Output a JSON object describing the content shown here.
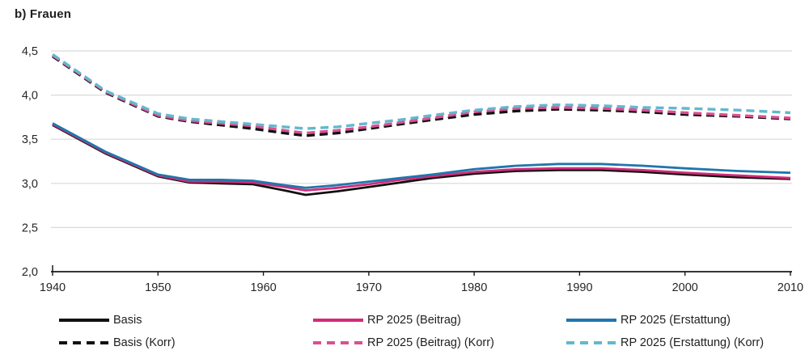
{
  "title": "b) Frauen",
  "colors": {
    "axis": "#1a1a1a",
    "grid": "#d9d9d9",
    "text": "#262626",
    "black": "#111111",
    "pink": "#d42a78",
    "blue": "#1f76ad",
    "pink_light": "#db4f91",
    "cyan": "#62b8cf"
  },
  "chart_data": {
    "type": "line",
    "title": "b) Frauen",
    "xlabel": "",
    "ylabel": "",
    "xlim": [
      1940,
      2010
    ],
    "ylim": [
      2.0,
      4.5
    ],
    "grid": "horizontal-light-gray",
    "legend_position": "bottom",
    "x_ticks": [
      1940,
      1950,
      1960,
      1970,
      1980,
      1990,
      2000,
      2010
    ],
    "y_ticks": [
      2.0,
      2.5,
      3.0,
      3.5,
      4.0,
      4.5
    ],
    "y_tick_labels": [
      "2,0",
      "2,5",
      "3,0",
      "3,5",
      "4,0",
      "4,5"
    ],
    "x": [
      1940,
      1945,
      1950,
      1953,
      1956,
      1959,
      1962,
      1964,
      1967,
      1970,
      1973,
      1976,
      1980,
      1984,
      1988,
      1992,
      1996,
      2000,
      2005,
      2010
    ],
    "series": [
      {
        "name": "Basis",
        "color": "#111111",
        "dash": false,
        "values": [
          3.66,
          3.34,
          3.08,
          3.01,
          3.0,
          2.99,
          2.92,
          2.87,
          2.91,
          2.96,
          3.01,
          3.06,
          3.11,
          3.14,
          3.15,
          3.15,
          3.13,
          3.1,
          3.07,
          3.05
        ]
      },
      {
        "name": "RP 2025 (Beitrag)",
        "color": "#d42a78",
        "dash": false,
        "values": [
          3.67,
          3.35,
          3.09,
          3.02,
          3.02,
          3.01,
          2.96,
          2.92,
          2.95,
          2.99,
          3.04,
          3.08,
          3.13,
          3.16,
          3.17,
          3.17,
          3.15,
          3.12,
          3.09,
          3.06
        ]
      },
      {
        "name": "RP 2025 (Erstattung)",
        "color": "#1f76ad",
        "dash": false,
        "values": [
          3.68,
          3.36,
          3.1,
          3.04,
          3.04,
          3.03,
          2.98,
          2.95,
          2.98,
          3.02,
          3.06,
          3.1,
          3.16,
          3.2,
          3.22,
          3.22,
          3.2,
          3.17,
          3.14,
          3.12
        ]
      },
      {
        "name": "Basis (Korr)",
        "color": "#111111",
        "dash": true,
        "values": [
          4.44,
          4.03,
          3.76,
          3.7,
          3.66,
          3.62,
          3.57,
          3.54,
          3.57,
          3.62,
          3.67,
          3.72,
          3.78,
          3.82,
          3.84,
          3.83,
          3.81,
          3.78,
          3.76,
          3.73
        ]
      },
      {
        "name": "RP 2025 (Beitrag) (Korr)",
        "color": "#db4f91",
        "dash": true,
        "values": [
          4.45,
          4.04,
          3.77,
          3.71,
          3.68,
          3.65,
          3.6,
          3.57,
          3.6,
          3.64,
          3.69,
          3.74,
          3.81,
          3.85,
          3.86,
          3.85,
          3.83,
          3.8,
          3.77,
          3.74
        ]
      },
      {
        "name": "RP 2025 (Erstattung) (Korr)",
        "color": "#62b8cf",
        "dash": true,
        "values": [
          4.46,
          4.05,
          3.79,
          3.73,
          3.7,
          3.67,
          3.64,
          3.62,
          3.64,
          3.68,
          3.72,
          3.77,
          3.83,
          3.87,
          3.89,
          3.88,
          3.86,
          3.85,
          3.83,
          3.8
        ]
      }
    ]
  },
  "legend": {
    "items": [
      {
        "label": "Basis",
        "color": "#111111",
        "dash": false
      },
      {
        "label": "RP 2025 (Beitrag)",
        "color": "#d42a78",
        "dash": false
      },
      {
        "label": "RP 2025 (Erstattung)",
        "color": "#1f76ad",
        "dash": false
      },
      {
        "label": "Basis (Korr)",
        "color": "#111111",
        "dash": true
      },
      {
        "label": "RP 2025 (Beitrag) (Korr)",
        "color": "#db4f91",
        "dash": true
      },
      {
        "label": "RP 2025 (Erstattung) (Korr)",
        "color": "#62b8cf",
        "dash": true
      }
    ]
  }
}
